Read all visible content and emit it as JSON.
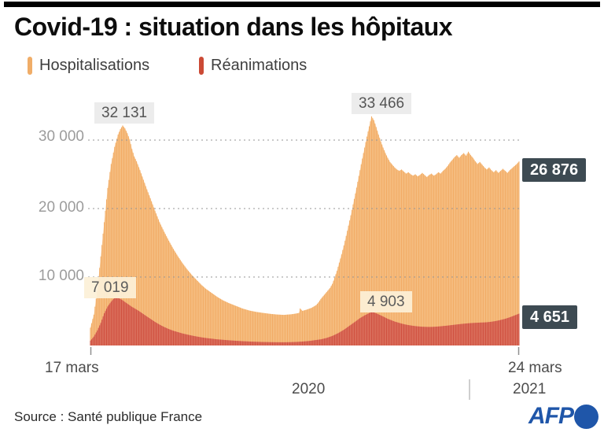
{
  "header": {
    "title": "Covid-19 : situation dans les hôpitaux"
  },
  "legend": {
    "hospitalisations": {
      "label": "Hospitalisations",
      "color": "#f0ad68"
    },
    "reanimations": {
      "label": "Réanimations",
      "color": "#cb4a35"
    }
  },
  "colors": {
    "hosp_bar": "#f2ac66",
    "hosp_bar_light": "#f9d2a2",
    "rea_bar": "#d05140",
    "rea_bar_light": "#e6937e",
    "dark_label_bg": "#3d4a52",
    "gray_label_bg": "#ececec",
    "cream_label_bg": "rgba(252,240,215,0.93)",
    "gridline": "#969696",
    "tick": "#8f8f8f",
    "afp_blue": "#1f56a9",
    "top_bar": "#000000"
  },
  "chart_data": {
    "type": "area",
    "title": "Covid-19 : situation dans les hôpitaux",
    "unit": "patients",
    "grid": "dashed-horizontal",
    "x_axis": {
      "start_label": "17 mars",
      "end_label": "24 mars",
      "year_left": "2020",
      "year_right": "2021",
      "total_days": 372
    },
    "y_axis": {
      "max": 35000,
      "ticks": [
        {
          "label": "30 000",
          "value": 30000
        },
        {
          "label": "20 000",
          "value": 20000
        },
        {
          "label": "10 000",
          "value": 10000
        }
      ]
    },
    "annotations": {
      "hosp_peak1": {
        "label": "32 131",
        "value": 32131
      },
      "hosp_peak2": {
        "label": "33 466",
        "value": 33466
      },
      "hosp_current": {
        "label": "26 876",
        "value": 26876
      },
      "rea_peak1": {
        "label": "7 019",
        "value": 7019
      },
      "rea_peak2": {
        "label": "4 903",
        "value": 4903
      },
      "rea_current": {
        "label": "4 651",
        "value": 4651
      }
    },
    "series": [
      {
        "name": "Hospitalisations",
        "points": [
          [
            0,
            2600
          ],
          [
            3,
            4500
          ],
          [
            6,
            8000
          ],
          [
            9,
            13000
          ],
          [
            12,
            18000
          ],
          [
            15,
            23000
          ],
          [
            18,
            26500
          ],
          [
            21,
            29000
          ],
          [
            24,
            30800
          ],
          [
            26,
            31600
          ],
          [
            28,
            32131
          ],
          [
            30,
            31700
          ],
          [
            32,
            31000
          ],
          [
            34,
            30100
          ],
          [
            36,
            28700
          ],
          [
            38,
            27600
          ],
          [
            40,
            26900
          ],
          [
            43,
            25600
          ],
          [
            46,
            24200
          ],
          [
            49,
            22800
          ],
          [
            52,
            21500
          ],
          [
            56,
            19700
          ],
          [
            60,
            18000
          ],
          [
            64,
            16600
          ],
          [
            68,
            15300
          ],
          [
            72,
            14100
          ],
          [
            76,
            13000
          ],
          [
            80,
            12000
          ],
          [
            84,
            11100
          ],
          [
            88,
            10300
          ],
          [
            92,
            9600
          ],
          [
            96,
            8900
          ],
          [
            100,
            8300
          ],
          [
            105,
            7700
          ],
          [
            110,
            7100
          ],
          [
            115,
            6600
          ],
          [
            120,
            6200
          ],
          [
            126,
            5800
          ],
          [
            132,
            5400
          ],
          [
            138,
            5100
          ],
          [
            144,
            4900
          ],
          [
            150,
            4750
          ],
          [
            156,
            4620
          ],
          [
            162,
            4520
          ],
          [
            168,
            4470
          ],
          [
            174,
            4550
          ],
          [
            178,
            4650
          ],
          [
            181,
            4750
          ],
          [
            182,
            5400
          ],
          [
            184,
            5050
          ],
          [
            188,
            5250
          ],
          [
            192,
            5500
          ],
          [
            196,
            5900
          ],
          [
            198,
            6300
          ],
          [
            200,
            6800
          ],
          [
            202,
            7200
          ],
          [
            204,
            7600
          ],
          [
            206,
            8000
          ],
          [
            208,
            8400
          ],
          [
            210,
            9000
          ],
          [
            212,
            9900
          ],
          [
            214,
            10900
          ],
          [
            216,
            12100
          ],
          [
            218,
            13300
          ],
          [
            220,
            14600
          ],
          [
            222,
            16000
          ],
          [
            224,
            17500
          ],
          [
            226,
            19000
          ],
          [
            228,
            20600
          ],
          [
            230,
            22200
          ],
          [
            232,
            23900
          ],
          [
            234,
            25600
          ],
          [
            236,
            27300
          ],
          [
            238,
            28900
          ],
          [
            240,
            30500
          ],
          [
            242,
            32000
          ],
          [
            244,
            33466
          ],
          [
            246,
            32900
          ],
          [
            248,
            31900
          ],
          [
            250,
            30800
          ],
          [
            252,
            29800
          ],
          [
            254,
            28900
          ],
          [
            256,
            28100
          ],
          [
            258,
            27400
          ],
          [
            260,
            26800
          ],
          [
            262,
            26400
          ],
          [
            264,
            26000
          ],
          [
            266,
            25700
          ],
          [
            268,
            25500
          ],
          [
            270,
            25700
          ],
          [
            272,
            25400
          ],
          [
            274,
            25100
          ],
          [
            276,
            25300
          ],
          [
            278,
            25000
          ],
          [
            280,
            24800
          ],
          [
            282,
            25000
          ],
          [
            284,
            24700
          ],
          [
            286,
            24900
          ],
          [
            288,
            25200
          ],
          [
            290,
            24900
          ],
          [
            292,
            24600
          ],
          [
            294,
            24900
          ],
          [
            296,
            25100
          ],
          [
            298,
            24800
          ],
          [
            300,
            25000
          ],
          [
            302,
            25300
          ],
          [
            304,
            25100
          ],
          [
            306,
            25500
          ],
          [
            308,
            25800
          ],
          [
            310,
            26200
          ],
          [
            312,
            26700
          ],
          [
            314,
            27100
          ],
          [
            316,
            27500
          ],
          [
            318,
            27800
          ],
          [
            320,
            27400
          ],
          [
            322,
            27800
          ],
          [
            324,
            28100
          ],
          [
            326,
            27700
          ],
          [
            328,
            28300
          ],
          [
            330,
            27800
          ],
          [
            332,
            27400
          ],
          [
            334,
            26900
          ],
          [
            336,
            26500
          ],
          [
            338,
            26800
          ],
          [
            340,
            26400
          ],
          [
            342,
            26000
          ],
          [
            344,
            25700
          ],
          [
            346,
            26000
          ],
          [
            348,
            25600
          ],
          [
            350,
            25300
          ],
          [
            352,
            25600
          ],
          [
            354,
            25200
          ],
          [
            356,
            25500
          ],
          [
            358,
            25800
          ],
          [
            360,
            25500
          ],
          [
            362,
            25200
          ],
          [
            364,
            25600
          ],
          [
            366,
            25900
          ],
          [
            368,
            26200
          ],
          [
            370,
            26500
          ],
          [
            372,
            26876
          ]
        ]
      },
      {
        "name": "Réanimations",
        "points": [
          [
            0,
            700
          ],
          [
            3,
            1300
          ],
          [
            6,
            2200
          ],
          [
            9,
            3300
          ],
          [
            12,
            4700
          ],
          [
            15,
            5700
          ],
          [
            18,
            6400
          ],
          [
            20,
            6800
          ],
          [
            22,
            7019
          ],
          [
            24,
            6950
          ],
          [
            26,
            6800
          ],
          [
            28,
            6600
          ],
          [
            30,
            6350
          ],
          [
            33,
            6000
          ],
          [
            36,
            5650
          ],
          [
            39,
            5350
          ],
          [
            42,
            5050
          ],
          [
            45,
            4700
          ],
          [
            48,
            4350
          ],
          [
            52,
            3900
          ],
          [
            56,
            3450
          ],
          [
            60,
            3050
          ],
          [
            64,
            2700
          ],
          [
            68,
            2400
          ],
          [
            72,
            2150
          ],
          [
            76,
            1950
          ],
          [
            80,
            1750
          ],
          [
            84,
            1600
          ],
          [
            88,
            1450
          ],
          [
            92,
            1320
          ],
          [
            96,
            1200
          ],
          [
            100,
            1100
          ],
          [
            105,
            1000
          ],
          [
            110,
            900
          ],
          [
            115,
            830
          ],
          [
            120,
            760
          ],
          [
            126,
            690
          ],
          [
            132,
            630
          ],
          [
            138,
            580
          ],
          [
            144,
            540
          ],
          [
            150,
            510
          ],
          [
            156,
            490
          ],
          [
            162,
            475
          ],
          [
            168,
            470
          ],
          [
            174,
            490
          ],
          [
            180,
            530
          ],
          [
            185,
            590
          ],
          [
            190,
            660
          ],
          [
            195,
            780
          ],
          [
            200,
            900
          ],
          [
            205,
            1100
          ],
          [
            210,
            1400
          ],
          [
            215,
            1800
          ],
          [
            220,
            2300
          ],
          [
            225,
            2900
          ],
          [
            230,
            3500
          ],
          [
            234,
            4000
          ],
          [
            238,
            4400
          ],
          [
            241,
            4650
          ],
          [
            244,
            4903
          ],
          [
            246,
            4830
          ],
          [
            248,
            4700
          ],
          [
            250,
            4550
          ],
          [
            252,
            4400
          ],
          [
            255,
            4150
          ],
          [
            258,
            3900
          ],
          [
            261,
            3700
          ],
          [
            264,
            3500
          ],
          [
            267,
            3350
          ],
          [
            270,
            3200
          ],
          [
            273,
            3080
          ],
          [
            276,
            2980
          ],
          [
            279,
            2900
          ],
          [
            282,
            2830
          ],
          [
            285,
            2780
          ],
          [
            288,
            2740
          ],
          [
            291,
            2720
          ],
          [
            294,
            2710
          ],
          [
            297,
            2720
          ],
          [
            300,
            2750
          ],
          [
            303,
            2790
          ],
          [
            306,
            2840
          ],
          [
            309,
            2890
          ],
          [
            312,
            2950
          ],
          [
            315,
            3010
          ],
          [
            318,
            3070
          ],
          [
            321,
            3130
          ],
          [
            324,
            3180
          ],
          [
            327,
            3230
          ],
          [
            330,
            3270
          ],
          [
            333,
            3300
          ],
          [
            336,
            3330
          ],
          [
            339,
            3350
          ],
          [
            342,
            3370
          ],
          [
            345,
            3410
          ],
          [
            348,
            3470
          ],
          [
            351,
            3550
          ],
          [
            354,
            3650
          ],
          [
            357,
            3770
          ],
          [
            360,
            3900
          ],
          [
            363,
            4060
          ],
          [
            366,
            4250
          ],
          [
            369,
            4450
          ],
          [
            372,
            4651
          ]
        ]
      }
    ]
  },
  "footer": {
    "source": "Source : Santé publique France",
    "afp_label": "AFP"
  }
}
